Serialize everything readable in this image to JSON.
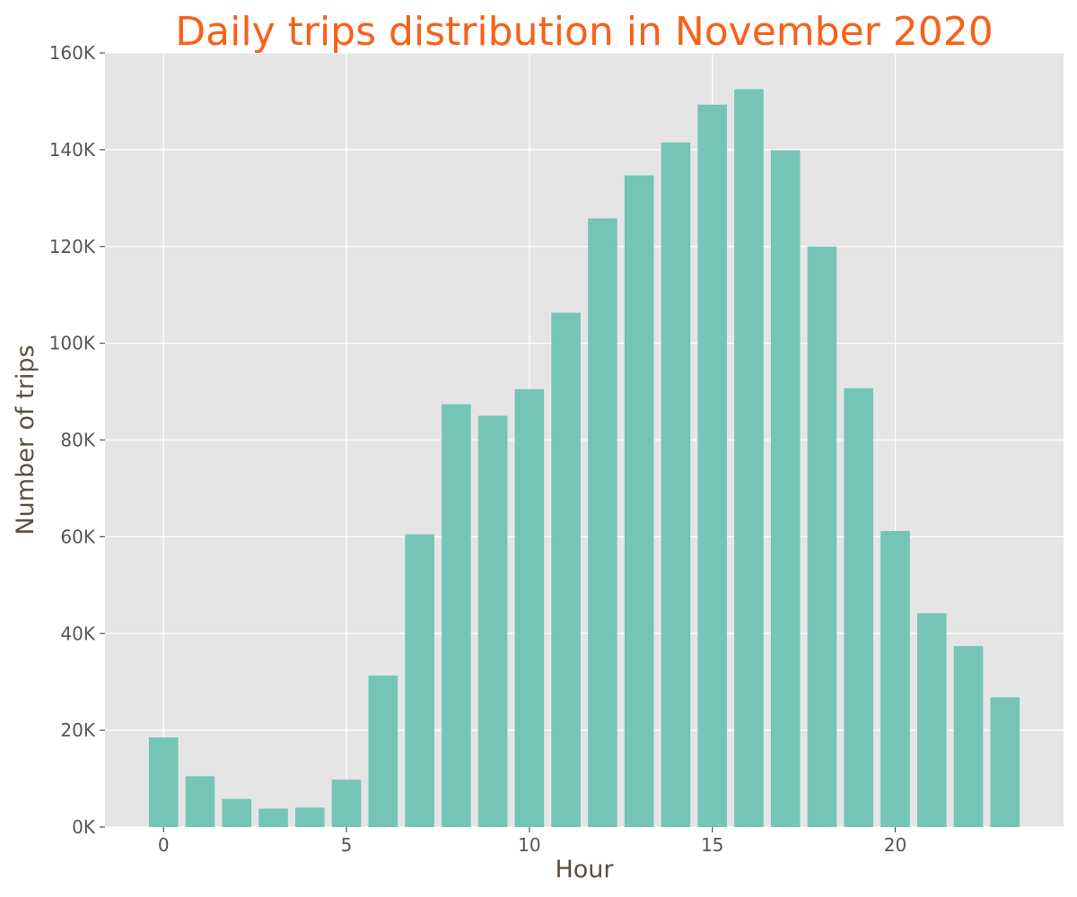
{
  "chart_data": {
    "type": "bar",
    "title": "Daily trips distribution in November 2020",
    "xlabel": "Hour",
    "ylabel": "Number of trips",
    "x": [
      0,
      1,
      2,
      3,
      4,
      5,
      6,
      7,
      8,
      9,
      10,
      11,
      12,
      13,
      14,
      15,
      16,
      17,
      18,
      19,
      20,
      21,
      22,
      23
    ],
    "values": [
      18500,
      10500,
      5800,
      3800,
      4000,
      9800,
      31300,
      60500,
      87400,
      85000,
      90500,
      106300,
      125800,
      134700,
      141500,
      149300,
      152500,
      139900,
      120000,
      90700,
      61200,
      44200,
      37400,
      26800
    ],
    "xticks": [
      0,
      5,
      10,
      15,
      20
    ],
    "xtick_labels": [
      "0",
      "5",
      "10",
      "15",
      "20"
    ],
    "yticks": [
      0,
      20000,
      40000,
      60000,
      80000,
      100000,
      120000,
      140000,
      160000
    ],
    "ytick_labels": [
      "0K",
      "20K",
      "40K",
      "60K",
      "80K",
      "100K",
      "120K",
      "140K",
      "160K"
    ],
    "xlim": [
      -1.6,
      24.6
    ],
    "ylim": [
      0,
      160000
    ],
    "grid": true,
    "colors": {
      "bar": "#74c5b5",
      "plot_background": "#e5e5e5",
      "grid": "#ffffff",
      "title": "#f86118",
      "axis_label": "#5b4f3e",
      "tick_label": "#555555"
    }
  }
}
